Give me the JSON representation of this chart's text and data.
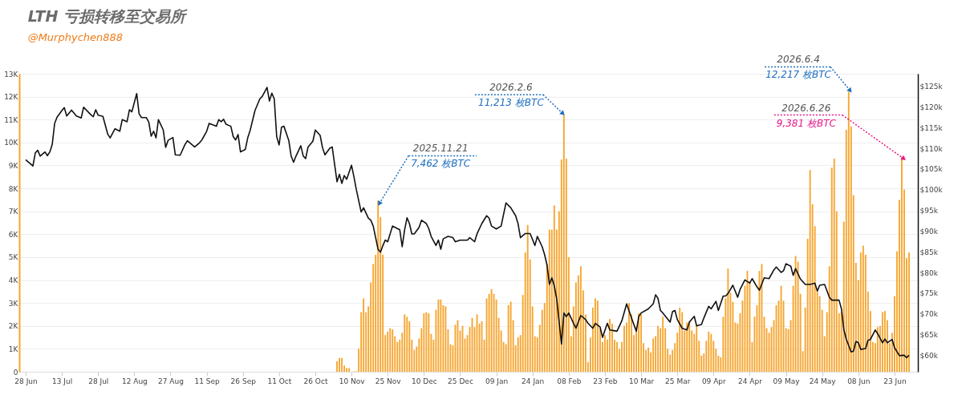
{
  "chart_data": {
    "type": "bar",
    "title": "LTH 亏损转移至交易所",
    "subtitle": "@Murphychen888",
    "xlim": [
      "2025-06-27",
      "2026-07-01"
    ],
    "xticks": [
      {
        "value": "2025-06-28",
        "label": "28 Jun"
      },
      {
        "value": "2025-07-13",
        "label": "13 Jul"
      },
      {
        "value": "2025-07-28",
        "label": "28 Jul"
      },
      {
        "value": "2025-08-12",
        "label": "12 Aug"
      },
      {
        "value": "2025-08-27",
        "label": "27 Aug"
      },
      {
        "value": "2025-09-11",
        "label": "11 Sep"
      },
      {
        "value": "2025-09-26",
        "label": "26 Sep"
      },
      {
        "value": "2025-10-11",
        "label": "11 Oct"
      },
      {
        "value": "2025-10-26",
        "label": "26 Oct"
      },
      {
        "value": "2025-11-10",
        "label": "10 Nov"
      },
      {
        "value": "2025-11-25",
        "label": "25 Nov"
      },
      {
        "value": "2025-12-10",
        "label": "10 Dec"
      },
      {
        "value": "2025-12-25",
        "label": "25 Dec"
      },
      {
        "value": "2026-01-09",
        "label": "09 Jan"
      },
      {
        "value": "2026-01-24",
        "label": "24 Jan"
      },
      {
        "value": "2026-02-08",
        "label": "08 Feb"
      },
      {
        "value": "2026-02-23",
        "label": "23 Feb"
      },
      {
        "value": "2026-03-10",
        "label": "10 Mar"
      },
      {
        "value": "2026-03-25",
        "label": "25 Mar"
      },
      {
        "value": "2026-04-09",
        "label": "09 Apr"
      },
      {
        "value": "2026-04-24",
        "label": "24 Apr"
      },
      {
        "value": "2026-05-09",
        "label": "09 May"
      },
      {
        "value": "2026-05-24",
        "label": "24 May"
      },
      {
        "value": "2026-06-08",
        "label": "08 Jun"
      },
      {
        "value": "2026-06-23",
        "label": "23 Jun"
      }
    ],
    "ylim": [
      0,
      13000
    ],
    "yticks": [
      0,
      {
        "value": 1000,
        "label": "1K"
      },
      {
        "value": 2000,
        "label": "2K"
      },
      {
        "value": 3000,
        "label": "3K"
      },
      {
        "value": 4000,
        "label": "4K"
      },
      {
        "value": 5000,
        "label": "5K"
      },
      {
        "value": 6000,
        "label": "6K"
      },
      {
        "value": 7000,
        "label": "7K"
      },
      {
        "value": 8000,
        "label": "8K"
      },
      {
        "value": 9000,
        "label": "9K"
      },
      {
        "value": 10000,
        "label": "10K"
      },
      {
        "value": 11000,
        "label": "11K"
      },
      {
        "value": 12000,
        "label": "12K"
      },
      {
        "value": 13000,
        "label": "13K"
      }
    ],
    "y2lim": [
      56,
      128
    ],
    "y2ticks": [
      {
        "value": 60,
        "label": "$60k"
      },
      {
        "value": 65,
        "label": "$65k"
      },
      {
        "value": 70,
        "label": "$70k"
      },
      {
        "value": 75,
        "label": "$75k"
      },
      {
        "value": 80,
        "label": "$80k"
      },
      {
        "value": 85,
        "label": "$85k"
      },
      {
        "value": 90,
        "label": "$90k"
      },
      {
        "value": 95,
        "label": "$95k"
      },
      {
        "value": 100,
        "label": "$100k"
      },
      {
        "value": 105,
        "label": "$105k"
      },
      {
        "value": 110,
        "label": "$110k"
      },
      {
        "value": 115,
        "label": "$115k"
      },
      {
        "value": 120,
        "label": "$120k"
      },
      {
        "value": 125,
        "label": "$125k"
      }
    ],
    "grid": "y",
    "annotations": [
      {
        "text": "2025.11.21",
        "x": "2025-11-21",
        "y": 7462
      },
      {
        "text": "7,462 枚BTC",
        "x": "2025-11-21",
        "y": 7462
      },
      {
        "text": "2026.2.6",
        "x": "2026-02-06",
        "y": 11213
      },
      {
        "text": "11,213 枚BTC",
        "x": "2026-02-06",
        "y": 11213
      },
      {
        "text": "2026.6.4",
        "x": "2026-06-04",
        "y": 12217
      },
      {
        "text": "12,217 枚BTC",
        "x": "2026-06-04",
        "y": 12217
      },
      {
        "text": "2026.6.26",
        "x": "2026-06-26",
        "y": 9381
      },
      {
        "text": "9,381 枚BTC",
        "x": "2026-06-26",
        "y": 9381
      }
    ],
    "series": [
      {
        "color": "#f6a52f",
        "x": [
          "2025-11-04",
          "2025-11-05",
          "2025-11-06",
          "2025-11-07",
          "2025-11-08",
          "2025-11-09",
          "2025-11-10",
          "2025-11-11",
          "2025-11-12",
          "2025-11-13",
          "2025-11-14",
          "2025-11-15",
          "2025-11-16",
          "2025-11-17",
          "2025-11-18",
          "2025-11-19",
          "2025-11-20",
          "2025-11-21",
          "2025-11-22",
          "2025-11-23",
          "2025-11-24",
          "2025-11-25",
          "2025-11-26",
          "2025-11-27",
          "2025-11-28",
          "2025-11-29",
          "2025-11-30",
          "2025-12-01",
          "2025-12-02",
          "2025-12-03",
          "2025-12-04",
          "2025-12-05",
          "2025-12-06",
          "2025-12-07",
          "2025-12-08",
          "2025-12-09",
          "2025-12-10",
          "2025-12-11",
          "2025-12-12",
          "2025-12-13",
          "2025-12-14",
          "2025-12-15",
          "2025-12-16",
          "2025-12-17",
          "2025-12-18",
          "2025-12-19",
          "2025-12-20",
          "2025-12-21",
          "2025-12-22",
          "2025-12-23",
          "2025-12-24",
          "2025-12-25",
          "2025-12-26",
          "2025-12-27",
          "2025-12-28",
          "2025-12-29",
          "2025-12-30",
          "2025-12-31",
          "2026-01-01",
          "2026-01-02",
          "2026-01-03",
          "2026-01-04",
          "2026-01-05",
          "2026-01-06",
          "2026-01-07",
          "2026-01-08",
          "2026-01-09",
          "2026-01-10",
          "2026-01-11",
          "2026-01-12",
          "2026-01-13",
          "2026-01-14",
          "2026-01-15",
          "2026-01-16",
          "2026-01-17",
          "2026-01-18",
          "2026-01-19",
          "2026-01-20",
          "2026-01-21",
          "2026-01-22",
          "2026-01-23",
          "2026-01-24",
          "2026-01-25",
          "2026-01-26",
          "2026-01-27",
          "2026-01-28",
          "2026-01-29",
          "2026-01-30",
          "2026-01-31",
          "2026-02-01",
          "2026-02-02",
          "2026-02-03",
          "2026-02-04",
          "2026-02-05",
          "2026-02-06",
          "2026-02-07",
          "2026-02-08",
          "2026-02-09",
          "2026-02-10",
          "2026-02-11",
          "2026-02-12",
          "2026-02-13",
          "2026-02-14",
          "2026-02-15",
          "2026-02-16",
          "2026-02-17",
          "2026-02-18",
          "2026-02-19",
          "2026-02-20",
          "2026-02-21",
          "2026-02-22",
          "2026-02-23",
          "2026-02-24",
          "2026-02-25",
          "2026-02-26",
          "2026-02-27",
          "2026-02-28",
          "2026-03-01",
          "2026-03-02",
          "2026-03-03",
          "2026-03-04",
          "2026-03-05",
          "2026-03-06",
          "2026-03-07",
          "2026-03-08",
          "2026-03-09",
          "2026-03-10",
          "2026-03-11",
          "2026-03-12",
          "2026-03-13",
          "2026-03-14",
          "2026-03-15",
          "2026-03-16",
          "2026-03-17",
          "2026-03-18",
          "2026-03-19",
          "2026-03-20",
          "2026-03-21",
          "2026-03-22",
          "2026-03-23",
          "2026-03-24",
          "2026-03-25",
          "2026-03-26",
          "2026-03-27",
          "2026-03-28",
          "2026-03-29",
          "2026-03-30",
          "2026-03-31",
          "2026-04-01",
          "2026-04-02",
          "2026-04-03",
          "2026-04-04",
          "2026-04-05",
          "2026-04-06",
          "2026-04-07",
          "2026-04-08",
          "2026-04-09",
          "2026-04-10",
          "2026-04-11",
          "2026-04-12",
          "2026-04-13",
          "2026-04-14",
          "2026-04-15",
          "2026-04-16",
          "2026-04-17",
          "2026-04-18",
          "2026-04-19",
          "2026-04-20",
          "2026-04-21",
          "2026-04-22",
          "2026-04-23",
          "2026-04-24",
          "2026-04-25",
          "2026-04-26",
          "2026-04-27",
          "2026-04-28",
          "2026-04-29",
          "2026-04-30",
          "2026-05-01",
          "2026-05-02",
          "2026-05-03",
          "2026-05-04",
          "2026-05-05",
          "2026-05-06",
          "2026-05-07",
          "2026-05-08",
          "2026-05-09",
          "2026-05-10",
          "2026-05-11",
          "2026-05-12",
          "2026-05-13",
          "2026-05-14",
          "2026-05-15",
          "2026-05-16",
          "2026-05-17",
          "2026-05-18",
          "2026-05-19",
          "2026-05-20",
          "2026-05-21",
          "2026-05-22",
          "2026-05-23",
          "2026-05-24",
          "2026-05-25",
          "2026-05-26",
          "2026-05-27",
          "2026-05-28",
          "2026-05-29",
          "2026-05-30",
          "2026-05-31",
          "2026-06-01",
          "2026-06-02",
          "2026-06-03",
          "2026-06-04",
          "2026-06-05",
          "2026-06-06",
          "2026-06-07",
          "2026-06-08",
          "2026-06-09",
          "2026-06-10",
          "2026-06-11",
          "2026-06-12",
          "2026-06-13",
          "2026-06-14",
          "2026-06-15",
          "2026-06-16",
          "2026-06-17",
          "2026-06-18",
          "2026-06-19",
          "2026-06-20",
          "2026-06-21",
          "2026-06-22",
          "2026-06-23",
          "2026-06-24",
          "2026-06-25",
          "2026-06-26",
          "2026-06-27",
          "2026-06-28",
          "2026-06-29"
        ],
        "values": [
          450,
          600,
          600,
          270,
          160,
          160,
          0,
          20,
          20,
          1000,
          2600,
          3200,
          2600,
          2850,
          3900,
          4700,
          5100,
          7462,
          6750,
          5100,
          1600,
          1750,
          1900,
          1850,
          1550,
          1300,
          1400,
          1700,
          2500,
          2400,
          2200,
          1400,
          950,
          1100,
          1450,
          1900,
          2550,
          2600,
          2550,
          1650,
          1400,
          2700,
          3150,
          3150,
          2900,
          2850,
          1850,
          1200,
          1150,
          2050,
          2250,
          1800,
          2000,
          1450,
          1600,
          1950,
          2350,
          1950,
          2500,
          2100,
          2200,
          1400,
          3200,
          3400,
          3600,
          3400,
          3150,
          2350,
          1800,
          1300,
          1200,
          2900,
          3050,
          2250,
          1150,
          1500,
          1600,
          3350,
          5200,
          6400,
          4900,
          2850,
          1550,
          1500,
          2050,
          2700,
          3000,
          4700,
          6200,
          6200,
          7250,
          6200,
          7000,
          9250,
          11213,
          9300,
          5000,
          1550,
          2850,
          3900,
          4200,
          4600,
          3550,
          2500,
          420,
          1500,
          2800,
          3200,
          3100,
          1900,
          1300,
          1600,
          1400,
          2300,
          2100,
          1400,
          1300,
          1000,
          1300,
          2000,
          2150,
          3000,
          2500,
          1600,
          1950,
          2550,
          2500,
          1250,
          950,
          1050,
          850,
          1450,
          1550,
          2000,
          1900,
          2400,
          1900,
          1000,
          750,
          950,
          1250,
          1700,
          2800,
          2600,
          1800,
          2150,
          2200,
          1800,
          1650,
          2000,
          1350,
          700,
          800,
          1350,
          1750,
          1650,
          1350,
          1000,
          700,
          630,
          2400,
          3200,
          4500,
          3450,
          3050,
          2150,
          2100,
          2550,
          3100,
          3750,
          4400,
          3950,
          1300,
          2400,
          2900,
          4400,
          4700,
          2400,
          1900,
          1700,
          1950,
          2250,
          2900,
          3100,
          3750,
          3100,
          1900,
          1850,
          2250,
          3750,
          5050,
          4800,
          3400,
          900,
          2800,
          5800,
          8800,
          7300,
          6350,
          3500,
          3300,
          2700,
          1550,
          2600,
          4600,
          8900,
          9300,
          7000,
          2550,
          2600,
          6550,
          10550,
          12217,
          10700,
          7700,
          4750,
          4000,
          5200,
          5500,
          5100,
          3500,
          2650,
          1300,
          1250,
          1950,
          2000,
          2600,
          2650,
          2250,
          1250,
          1700,
          3300,
          5250,
          7500,
          9381,
          7950,
          4950,
          5200
        ]
      },
      {
        "type": "line",
        "axis": "y2",
        "color": "#111111",
        "x": [
          "2025-06-28",
          "2025-07-01",
          "2025-07-02",
          "2025-07-03",
          "2025-07-04",
          "2025-07-06",
          "2025-07-07",
          "2025-07-08",
          "2025-07-09",
          "2025-07-10",
          "2025-07-11",
          "2025-07-13",
          "2025-07-14",
          "2025-07-15",
          "2025-07-17",
          "2025-07-19",
          "2025-07-21",
          "2025-07-22",
          "2025-07-25",
          "2025-07-26",
          "2025-07-27",
          "2025-07-28",
          "2025-07-30",
          "2025-08-01",
          "2025-08-02",
          "2025-08-04",
          "2025-08-06",
          "2025-08-07",
          "2025-08-09",
          "2025-08-10",
          "2025-08-11",
          "2025-08-13",
          "2025-08-14",
          "2025-08-15",
          "2025-08-17",
          "2025-08-18",
          "2025-08-19",
          "2025-08-20",
          "2025-08-21",
          "2025-08-22",
          "2025-08-24",
          "2025-08-25",
          "2025-08-26",
          "2025-08-28",
          "2025-08-29",
          "2025-08-31",
          "2025-09-02",
          "2025-09-03",
          "2025-09-06",
          "2025-09-08",
          "2025-09-09",
          "2025-09-11",
          "2025-09-12",
          "2025-09-15",
          "2025-09-16",
          "2025-09-17",
          "2025-09-18",
          "2025-09-19",
          "2025-09-21",
          "2025-09-22",
          "2025-09-23",
          "2025-09-24",
          "2025-09-25",
          "2025-09-27",
          "2025-09-28",
          "2025-09-29",
          "2025-10-01",
          "2025-10-03",
          "2025-10-04",
          "2025-10-06",
          "2025-10-07",
          "2025-10-08",
          "2025-10-09",
          "2025-10-10",
          "2025-10-11",
          "2025-10-12",
          "2025-10-13",
          "2025-10-15",
          "2025-10-16",
          "2025-10-17",
          "2025-10-18",
          "2025-10-20",
          "2025-10-21",
          "2025-10-22",
          "2025-10-23",
          "2025-10-25",
          "2025-10-26",
          "2025-10-28",
          "2025-10-29",
          "2025-10-30",
          "2025-11-01",
          "2025-11-02",
          "2025-11-04",
          "2025-11-05",
          "2025-11-06",
          "2025-11-07",
          "2025-11-08",
          "2025-11-10",
          "2025-11-11",
          "2025-11-12",
          "2025-11-14",
          "2025-11-15",
          "2025-11-17",
          "2025-11-18",
          "2025-11-19",
          "2025-11-21",
          "2025-11-22",
          "2025-11-23",
          "2025-11-24",
          "2025-11-25",
          "2025-11-27",
          "2025-11-28",
          "2025-11-30",
          "2025-12-01",
          "2025-12-02",
          "2025-12-03",
          "2025-12-04",
          "2025-12-05",
          "2025-12-06",
          "2025-12-08",
          "2025-12-09",
          "2025-12-11",
          "2025-12-12",
          "2025-12-13",
          "2025-12-15",
          "2025-12-16",
          "2025-12-17",
          "2025-12-18",
          "2025-12-20",
          "2025-12-22",
          "2025-12-23",
          "2025-12-25",
          "2025-12-28",
          "2025-12-29",
          "2025-12-31",
          "2026-01-01",
          "2026-01-03",
          "2026-01-05",
          "2026-01-06",
          "2026-01-07",
          "2026-01-09",
          "2026-01-11",
          "2026-01-13",
          "2026-01-15",
          "2026-01-17",
          "2026-01-18",
          "2026-01-19",
          "2026-01-21",
          "2026-01-23",
          "2026-01-25",
          "2026-01-26",
          "2026-01-28",
          "2026-01-29",
          "2026-01-30",
          "2026-01-31",
          "2026-02-01",
          "2026-02-02",
          "2026-02-03",
          "2026-02-05",
          "2026-02-06",
          "2026-02-07",
          "2026-02-08",
          "2026-02-10",
          "2026-02-11",
          "2026-02-13",
          "2026-02-15",
          "2026-02-16",
          "2026-02-18",
          "2026-02-19",
          "2026-02-21",
          "2026-02-22",
          "2026-02-24",
          "2026-02-25",
          "2026-02-28",
          "2026-03-02",
          "2026-03-04",
          "2026-03-06",
          "2026-03-08",
          "2026-03-09",
          "2026-03-10",
          "2026-03-13",
          "2026-03-15",
          "2026-03-16",
          "2026-03-17",
          "2026-03-18",
          "2026-03-19",
          "2026-03-22",
          "2026-03-23",
          "2026-03-24",
          "2026-03-25",
          "2026-03-27",
          "2026-03-29",
          "2026-03-30",
          "2026-04-01",
          "2026-04-02",
          "2026-04-04",
          "2026-04-05",
          "2026-04-07",
          "2026-04-08",
          "2026-04-10",
          "2026-04-11",
          "2026-04-13",
          "2026-04-14",
          "2026-04-15",
          "2026-04-17",
          "2026-04-19",
          "2026-04-20",
          "2026-04-22",
          "2026-04-24",
          "2026-04-25",
          "2026-04-27",
          "2026-04-28",
          "2026-04-30",
          "2026-05-02",
          "2026-05-04",
          "2026-05-05",
          "2026-05-07",
          "2026-05-08",
          "2026-05-09",
          "2026-05-11",
          "2026-05-12",
          "2026-05-13",
          "2026-05-15",
          "2026-05-17",
          "2026-05-19",
          "2026-05-21",
          "2026-05-22",
          "2026-05-23",
          "2026-05-25",
          "2026-05-27",
          "2026-05-28",
          "2026-05-31",
          "2026-06-01",
          "2026-06-02",
          "2026-06-03",
          "2026-06-05",
          "2026-06-06",
          "2026-06-07",
          "2026-06-08",
          "2026-06-09",
          "2026-06-11",
          "2026-06-12",
          "2026-06-13",
          "2026-06-15",
          "2026-06-16",
          "2026-06-18",
          "2026-06-19",
          "2026-06-20",
          "2026-06-22",
          "2026-06-23",
          "2026-06-25",
          "2026-06-27",
          "2026-06-28",
          "2026-06-29"
        ],
        "values": [
          107.2,
          105.7,
          108.9,
          109.5,
          108.1,
          109.1,
          108.2,
          109.1,
          110.9,
          116.0,
          117.5,
          119.1,
          119.8,
          117.8,
          119.2,
          117.8,
          117.3,
          119.9,
          118.1,
          117.6,
          119.3,
          118.0,
          117.7,
          113.4,
          112.5,
          114.7,
          114.1,
          116.9,
          116.4,
          119.3,
          118.8,
          123.2,
          118.3,
          117.4,
          117.4,
          116.3,
          112.9,
          114.1,
          112.5,
          116.9,
          114.4,
          110.2,
          111.9,
          112.6,
          108.4,
          108.3,
          110.9,
          111.8,
          110.3,
          111.3,
          112.0,
          114.1,
          116.0,
          115.3,
          116.9,
          116.4,
          117.0,
          115.8,
          115.3,
          112.8,
          112.0,
          113.3,
          109.1,
          109.7,
          112.5,
          114.3,
          119.1,
          121.9,
          122.5,
          124.7,
          121.4,
          123.3,
          121.9,
          112.8,
          110.8,
          115.1,
          115.3,
          111.9,
          108.1,
          106.6,
          108.1,
          110.6,
          108.1,
          107.5,
          110.3,
          111.7,
          114.4,
          113.1,
          110.1,
          108.4,
          110.0,
          110.3,
          101.9,
          103.7,
          101.5,
          103.4,
          102.5,
          105.9,
          103.1,
          100.0,
          94.6,
          95.6,
          93.1,
          92.6,
          91.2,
          85.6,
          84.9,
          86.5,
          87.8,
          87.4,
          91.2,
          90.9,
          90.3,
          86.2,
          90.3,
          93.2,
          91.8,
          89.3,
          89.3,
          90.9,
          92.6,
          91.8,
          90.6,
          88.7,
          86.5,
          87.8,
          85.6,
          88.1,
          88.7,
          88.4,
          87.4,
          87.8,
          87.8,
          88.4,
          87.4,
          89.3,
          91.8,
          93.7,
          93.1,
          91.2,
          90.5,
          91.2,
          96.8,
          95.6,
          93.7,
          91.8,
          88.4,
          89.4,
          89.4,
          86.5,
          88.7,
          86.2,
          84.3,
          81.8,
          77.1,
          78.7,
          76.8,
          73.7,
          62.7,
          70.2,
          69.3,
          70.2,
          67.7,
          66.5,
          69.6,
          68.6,
          67.7,
          66.5,
          67.7,
          66.8,
          64.3,
          67.7,
          66.1,
          65.8,
          68.3,
          72.4,
          69.0,
          65.8,
          69.3,
          70.2,
          71.2,
          72.4,
          74.6,
          73.7,
          70.8,
          70.2,
          68.0,
          70.5,
          70.8,
          68.6,
          66.5,
          66.1,
          68.0,
          69.4,
          67.1,
          67.4,
          69.0,
          71.8,
          71.2,
          73.0,
          70.8,
          74.3,
          74.3,
          74.9,
          76.9,
          74.0,
          75.9,
          78.2,
          77.4,
          78.5,
          76.5,
          75.7,
          78.7,
          78.5,
          80.6,
          81.3,
          80.0,
          80.4,
          82.1,
          81.5,
          79.3,
          80.9,
          78.4,
          77.1,
          77.1,
          77.4,
          75.5,
          76.9,
          77.1,
          74.0,
          73.3,
          73.3,
          71.2,
          66.1,
          63.9,
          60.8,
          61.0,
          63.3,
          63.0,
          61.4,
          61.6,
          63.6,
          63.8,
          66.1,
          65.2,
          63.0,
          63.9,
          63.0,
          63.8,
          61.8,
          59.9,
          60.0,
          59.4,
          60.0
        ]
      }
    ]
  }
}
